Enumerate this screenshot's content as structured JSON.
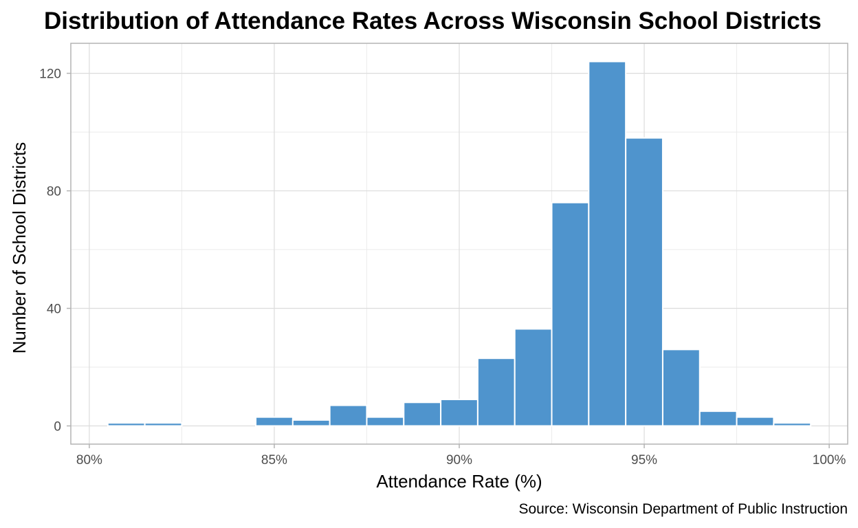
{
  "chart_data": {
    "type": "bar",
    "title": "Distribution of Attendance Rates Across Wisconsin School Districts",
    "xlabel": "Attendance Rate (%)",
    "ylabel": "Number of School Districts",
    "caption": "Source: Wisconsin Department of Public Instruction",
    "bin_width": 1,
    "bin_centers": [
      80,
      81,
      82,
      83,
      84,
      85,
      86,
      87,
      88,
      89,
      90,
      91,
      92,
      93,
      94,
      95,
      96,
      97,
      98,
      99,
      100
    ],
    "values": [
      0,
      1,
      1,
      0,
      0,
      3,
      2,
      7,
      3,
      8,
      9,
      23,
      33,
      76,
      124,
      98,
      26,
      5,
      3,
      1,
      0
    ],
    "x_ticks": [
      80,
      85,
      90,
      95,
      100
    ],
    "x_tick_labels": [
      "80%",
      "85%",
      "90%",
      "95%",
      "100%"
    ],
    "y_ticks": [
      0,
      40,
      80,
      120
    ],
    "y_tick_labels": [
      "0",
      "40",
      "80",
      "120"
    ],
    "xlim": [
      79.5,
      100.5
    ],
    "ylim": [
      -6.2,
      130.2
    ],
    "bar_color": "#4f94cd",
    "grid": true
  }
}
